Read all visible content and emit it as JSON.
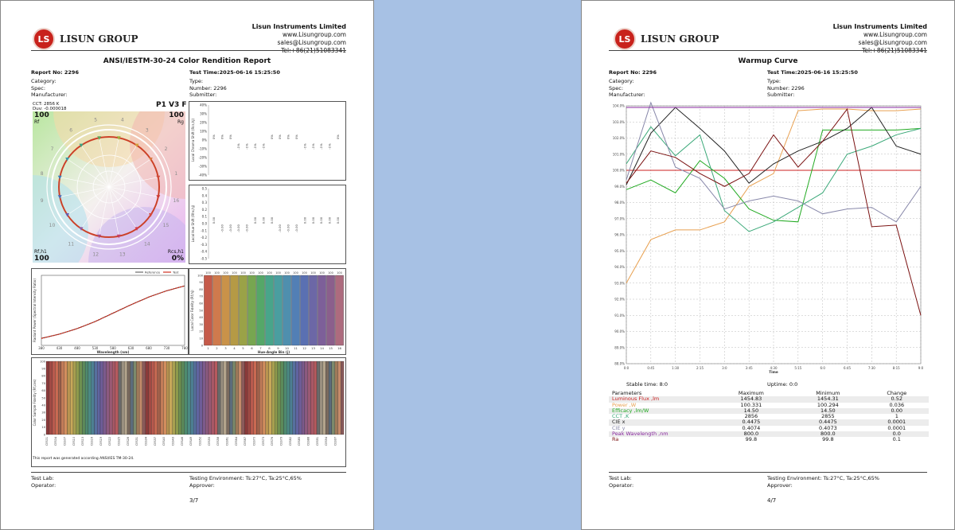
{
  "company": {
    "logo_letters": "LS",
    "logo_text": "LISUN GROUP",
    "name": "Lisun Instruments Limited",
    "web": "www.Lisungroup.com",
    "email": "sales@Lisungroup.com",
    "tel": "Tel:+86(21)51083341"
  },
  "page1": {
    "title": "ANSI/IESTM-30-24 Color Rendition Report",
    "report_no": "Report No: 2296",
    "test_time": "Test Time:2025-06-16 15:25:50",
    "left_fields": [
      "Category:",
      "Spec:",
      "Manufacturer:"
    ],
    "right_fields": [
      "Type:",
      "Number:  2296",
      "Submitter:"
    ],
    "cct": "CCT:  2856 K",
    "duv": "Duv:  -0.000018",
    "model": "P1 V3 F",
    "rf_value": "100",
    "rf_label": "Rf",
    "rg_value": "100",
    "rg_label": "Rg",
    "rfh1_label": "Rf,h1",
    "rfh1_value": "100",
    "rcsh1_label": "Rcs,h1",
    "rcsh1_value": "0%",
    "wheel_numbers": [
      "1",
      "2",
      "3",
      "4",
      "5",
      "6",
      "7",
      "8",
      "9",
      "10",
      "11",
      "12",
      "13",
      "14",
      "15",
      "16"
    ],
    "chroma_pct": [
      "0%",
      "0%",
      "0%",
      "-1%",
      "-1%",
      "-1%",
      "-1%",
      "0%",
      "0%",
      "0%",
      "0%",
      "-1%",
      "-1%",
      "-1%",
      "-1%",
      "0%"
    ],
    "chroma_ylabel": "Local Chroma Shift (Rcs,hj)",
    "chroma_ticks": [
      "40%",
      "30%",
      "20%",
      "10%",
      "0%",
      "-10%",
      "-20%",
      "-30%",
      "-40%"
    ],
    "hue_vals": [
      "0.00",
      "-0.00",
      "-0.00",
      "-0.00",
      "-0.00",
      "0.00",
      "0.00",
      "0.00",
      "-0.00",
      "-0.00",
      "-0.00",
      "0.00",
      "0.00",
      "0.00",
      "0.00",
      "0.00"
    ],
    "hue_ylabel": "Local Hue Shift (Rhs,hj)",
    "hue_ticks": [
      "0.5",
      "0.4",
      "0.3",
      "0.2",
      "0.1",
      "0.0",
      "-0.1",
      "-0.2",
      "-0.3",
      "-0.4",
      "-0.5"
    ],
    "spd_legend": [
      "Reference",
      "Test"
    ],
    "spd_ylabel": "Radiant Power (Spectral Intensity Ratio)",
    "spd_xlabel": "Wavelength (nm)",
    "spd_xticks": [
      "380",
      "430",
      "480",
      "530",
      "580",
      "630",
      "680",
      "730",
      "780"
    ],
    "fid_ylabel": "Local Color Fidelity (Rf,hj)",
    "fid_xlabel": "Hue-Angle Bin (j)",
    "fid_top": [
      "100",
      "100",
      "100",
      "100",
      "100",
      "100",
      "100",
      "100",
      "100",
      "100",
      "100",
      "100",
      "100",
      "100",
      "100",
      "100"
    ],
    "fid_yticks": [
      "100",
      "90",
      "80",
      "70",
      "60",
      "50",
      "40",
      "30",
      "20",
      "10",
      "0"
    ],
    "ces_ylabel": "Color Sample Fidelity (Rf,ces)",
    "ces_yticks": [
      "100",
      "90",
      "80",
      "70",
      "60",
      "50",
      "40",
      "30",
      "20",
      "10",
      "0"
    ],
    "ces_xlabels": [
      "CES01",
      "CES04",
      "CES07",
      "CES10",
      "CES13",
      "CES16",
      "CES19",
      "CES22",
      "CES25",
      "CES28",
      "CES31",
      "CES34",
      "CES37",
      "CES40",
      "CES43",
      "CES46",
      "CES49",
      "CES52",
      "CES55",
      "CES58",
      "CES61",
      "CES64",
      "CES67",
      "CES70",
      "CES73",
      "CES76",
      "CES79",
      "CES82",
      "CES85",
      "CES88",
      "CES91",
      "CES94",
      "CES97"
    ],
    "note": "This report was generated according ANSI/IES TM-30-24.",
    "test_lab": "Test Lab:",
    "operator": "Operator:",
    "environment": "Testing Environment:   Ts:27°C, Ta:25°C,65%",
    "approver": "Approver:",
    "page_no": "3/7"
  },
  "page2": {
    "title": "Warmup Curve",
    "report_no": "Report No: 2296",
    "test_time": "Test Time:2025-06-16 15:25:50",
    "left_fields": [
      "Category:",
      "Spec:",
      "Manufacturer:"
    ],
    "right_fields": [
      "Type:",
      "Number:  2296",
      "Submitter:"
    ],
    "yticks": [
      "104.0%",
      "103.0%",
      "102.0%",
      "101.0%",
      "100.0%",
      "99.0%",
      "98.0%",
      "97.0%",
      "96.0%",
      "95.0%",
      "94.0%",
      "93.0%",
      "92.0%",
      "91.0%",
      "90.0%",
      "89.0%",
      "88.0%"
    ],
    "xticks": [
      "0:0",
      "0:45",
      "1:30",
      "2:15",
      "3:0",
      "3:45",
      "4:30",
      "5:15",
      "6:0",
      "6:45",
      "7:30",
      "8:15",
      "9:0"
    ],
    "xlabel": "Time",
    "stable_time": "Stable time:  8:0",
    "uptime": "Uptime:  0:0",
    "table_headers": [
      "Parameters",
      "Maximum",
      "Minimum",
      "Change"
    ],
    "params": [
      {
        "name": "Luminous Flux ,lm",
        "max": "1454.83",
        "min": "1454.31",
        "change": "0.52",
        "color": "#cc2222"
      },
      {
        "name": "Power ,W",
        "max": "100.331",
        "min": "100.294",
        "change": "0.036",
        "color": "#e8a050"
      },
      {
        "name": "Efficacy ,lm/W",
        "max": "14.50",
        "min": "14.50",
        "change": "0.00",
        "color": "#22aa22"
      },
      {
        "name": "CCT ,K",
        "max": "2856",
        "min": "2855",
        "change": "1",
        "color": "#3aa878"
      },
      {
        "name": "CIE x",
        "max": "0.4475",
        "min": "0.4475",
        "change": "0.0001",
        "color": "#222222"
      },
      {
        "name": "CIE y",
        "max": "0.4074",
        "min": "0.4073",
        "change": "0.0001",
        "color": "#8888aa"
      },
      {
        "name": "Peak Wavelength ,nm",
        "max": "800.0",
        "min": "800.0",
        "change": "0.0",
        "color": "#8a2aa0"
      },
      {
        "name": "Ra",
        "max": "99.8",
        "min": "99.8",
        "change": "0.1",
        "color": "#7a1010"
      }
    ],
    "test_lab": "Test Lab:",
    "operator": "Operator:",
    "environment": "Testing Environment:   Ts:27°C, Ta:25°C,65%",
    "approver": "Approver:",
    "page_no": "4/7"
  },
  "chart_data": [
    {
      "type": "line",
      "title": "",
      "xlabel": "Wavelength (nm)",
      "ylabel": "Radiant Power (Spectral Intensity Ratio)",
      "x": [
        380,
        430,
        480,
        530,
        580,
        630,
        680,
        730,
        780
      ],
      "series": [
        {
          "name": "Reference",
          "values": [
            0.1,
            0.16,
            0.24,
            0.34,
            0.46,
            0.58,
            0.69,
            0.78,
            0.85
          ]
        },
        {
          "name": "Test",
          "values": [
            0.1,
            0.16,
            0.24,
            0.34,
            0.46,
            0.58,
            0.69,
            0.78,
            0.85
          ]
        }
      ],
      "color": "#d03020"
    },
    {
      "type": "bar",
      "title": "",
      "xlabel": "Hue-Angle Bin (j)",
      "ylabel": "Local Color Fidelity (Rf,hj)",
      "categories": [
        "1",
        "2",
        "3",
        "4",
        "5",
        "6",
        "7",
        "8",
        "9",
        "10",
        "11",
        "12",
        "13",
        "14",
        "15",
        "16"
      ],
      "values": [
        100,
        100,
        100,
        100,
        100,
        100,
        100,
        100,
        100,
        100,
        100,
        100,
        100,
        100,
        100,
        100
      ],
      "ylim": [
        0,
        100
      ],
      "colors": [
        "#c55a4a",
        "#cf7a4d",
        "#c99249",
        "#b59a45",
        "#9aa247",
        "#77a650",
        "#55a768",
        "#48a58a",
        "#4a9ea0",
        "#4f8fae",
        "#527fb5",
        "#5a70b2",
        "#6c67a6",
        "#7d5f99",
        "#8b5f8c",
        "#ad6b7e"
      ]
    },
    {
      "type": "bar",
      "title": "",
      "ylabel": "Color Sample Fidelity (Rf,ces)",
      "ylim": [
        0,
        100
      ],
      "n": 99,
      "value": 100
    },
    {
      "type": "line",
      "title": "Warmup Curve",
      "xlabel": "Time",
      "x": [
        "0:0",
        "0:45",
        "1:30",
        "2:15",
        "3:0",
        "3:45",
        "4:30",
        "5:15",
        "6:0",
        "6:45",
        "7:30",
        "8:15",
        "9:0"
      ],
      "ylim": [
        88,
        104
      ],
      "series": [
        {
          "name": "Luminous Flux ,lm",
          "values": [
            100.0,
            100.0,
            100.0,
            100.0,
            100.0,
            100.0,
            100.0,
            100.0,
            100.0,
            100.0,
            100.0,
            100.0,
            100.0
          ]
        },
        {
          "name": "Power ,W",
          "values": [
            93.0,
            95.7,
            96.3,
            96.3,
            96.8,
            99.0,
            99.8,
            103.7,
            103.8,
            103.8,
            103.7,
            103.7,
            103.8
          ]
        },
        {
          "name": "Efficacy ,lm/W",
          "values": [
            98.8,
            99.4,
            98.6,
            100.6,
            99.5,
            97.6,
            96.9,
            96.8,
            102.5,
            102.5,
            102.5,
            102.5,
            102.6
          ]
        },
        {
          "name": "CCT ,K",
          "values": [
            100.4,
            102.7,
            100.9,
            102.2,
            97.5,
            96.2,
            96.8,
            97.7,
            98.6,
            101.0,
            101.5,
            102.2,
            102.6
          ]
        },
        {
          "name": "CIE x",
          "values": [
            99.1,
            102.3,
            103.9,
            102.6,
            101.2,
            99.2,
            100.4,
            101.2,
            101.8,
            102.6,
            103.9,
            101.5,
            101.0
          ]
        },
        {
          "name": "CIE y",
          "values": [
            99.4,
            104.2,
            100.2,
            99.5,
            97.6,
            98.1,
            98.4,
            98.1,
            97.3,
            97.6,
            97.7,
            96.8,
            99.0
          ]
        },
        {
          "name": "Peak Wavelength ,nm",
          "values": [
            103.9,
            103.9,
            103.9,
            103.9,
            103.9,
            103.9,
            103.9,
            103.9,
            103.9,
            103.9,
            103.9,
            103.9,
            103.9
          ]
        },
        {
          "name": "Ra",
          "values": [
            99.2,
            101.2,
            100.8,
            99.8,
            99.0,
            99.8,
            102.2,
            100.2,
            101.8,
            103.8,
            96.5,
            96.6,
            91.0
          ]
        }
      ]
    }
  ]
}
